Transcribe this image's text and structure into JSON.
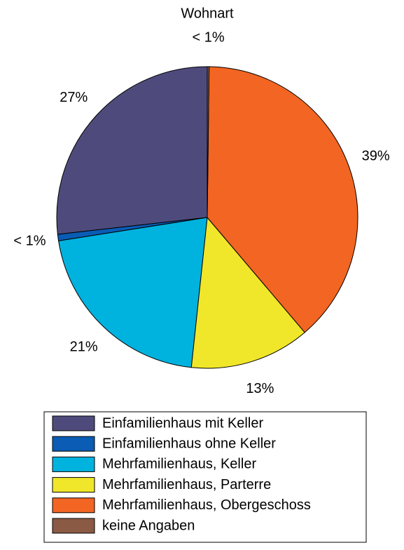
{
  "chart_data": {
    "type": "pie",
    "title": "Wohnart",
    "categories": [
      "Einfamilienhaus mit Keller",
      "Einfamilienhaus ohne Keller",
      "Mehrfamilienhaus, Keller",
      "Mehrfamilienhaus, Parterre",
      "Mehrfamilienhaus, Obergeschoss",
      "keine Angaben"
    ],
    "values": [
      27,
      0.7,
      21,
      13,
      38.9,
      0.2
    ],
    "value_labels": [
      "27%",
      "< 1%",
      "21%",
      "13%",
      "39%",
      "< 1%"
    ],
    "colors": [
      "#4e4b7c",
      "#0a5cb4",
      "#00b2de",
      "#f0e62a",
      "#f26522",
      "#8b5a44"
    ],
    "legend": "bottom"
  }
}
